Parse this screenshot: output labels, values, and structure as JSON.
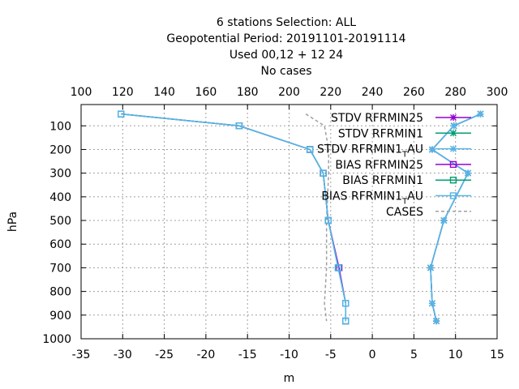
{
  "chart_data": {
    "type": "line",
    "title_lines": [
      "6 stations Selection: ALL",
      "Geopotential  Period: 20191101-20191114",
      "Used  00,12  + 12 24",
      "No cases"
    ],
    "xlabel": "m",
    "ylabel": "hPa",
    "xlim": [
      -35,
      15
    ],
    "ylim": [
      1000,
      10
    ],
    "y_reversed": true,
    "x_ticks": [
      "-35",
      "-30",
      "-25",
      "-20",
      "-15",
      "-10",
      "-5",
      "0",
      "5",
      "10",
      "15"
    ],
    "x_tick_values": [
      -35,
      -30,
      -25,
      -20,
      -15,
      -10,
      -5,
      0,
      5,
      10,
      15
    ],
    "y_ticks": [
      "100",
      "200",
      "300",
      "400",
      "500",
      "600",
      "700",
      "800",
      "900",
      "1000"
    ],
    "y_tick_values": [
      100,
      200,
      300,
      400,
      500,
      600,
      700,
      800,
      900,
      1000
    ],
    "x2_ticks": [
      "100",
      "120",
      "140",
      "160",
      "180",
      "200",
      "220",
      "240",
      "260",
      "280",
      "300"
    ],
    "x2_tick_values": [
      100,
      120,
      140,
      160,
      180,
      200,
      220,
      240,
      260,
      280,
      300
    ],
    "x2lim": [
      100,
      300
    ],
    "grid": true,
    "legend_position": "top-right",
    "levels": [
      50,
      100,
      200,
      300,
      500,
      700,
      850,
      925
    ],
    "series": [
      {
        "name": "STDV RFRMIN25",
        "color": "#9400d3",
        "marker": "x",
        "dash": "solid",
        "values": [
          13,
          9.8,
          7.2,
          11.5,
          8.6,
          7.0,
          7.2,
          7.7
        ]
      },
      {
        "name": "STDV RFRMIN1",
        "color": "#009e73",
        "marker": "x",
        "dash": "solid",
        "values": [
          13,
          9.8,
          7.2,
          11.5,
          8.6,
          7.0,
          7.2,
          7.7
        ]
      },
      {
        "name": "STDV RFRMIN1_T_AU",
        "label_main": "STDV RFRMIN1",
        "label_sub": "T",
        "label_tail": "AU",
        "color": "#56b4e9",
        "marker": "x",
        "dash": "solid",
        "values": [
          13,
          9.8,
          7.2,
          11.5,
          8.6,
          7.0,
          7.2,
          7.7
        ]
      },
      {
        "name": "BIAS RFRMIN25",
        "color": "#9400d3",
        "marker": "square",
        "dash": "solid",
        "values": [
          -30.2,
          -16,
          -7.5,
          -5.9,
          -5.3,
          -4,
          -3.2,
          -3.2
        ]
      },
      {
        "name": "BIAS RFRMIN1",
        "color": "#009e73",
        "marker": "square",
        "dash": "solid",
        "values": [
          -30.2,
          -16,
          -7.5,
          -5.9,
          -5.3,
          -4.1,
          -3.2,
          -3.2
        ]
      },
      {
        "name": "BIAS RFRMIN1_T_AU",
        "label_main": "BIAS RFRMIN1",
        "label_sub": "T",
        "label_tail": "AU",
        "color": "#56b4e9",
        "marker": "square",
        "dash": "solid",
        "values": [
          -30.2,
          -16,
          -7.5,
          -5.9,
          -5.3,
          -4.1,
          -3.2,
          -3.2
        ]
      }
    ],
    "cases_series": {
      "name": "CASES",
      "color": "#a0a0a0",
      "dash": "dashed",
      "axis": "x2",
      "x2_values": [
        208,
        217,
        219,
        219,
        218,
        218,
        217,
        218
      ],
      "levels": [
        50,
        100,
        200,
        300,
        500,
        700,
        850,
        925
      ]
    }
  }
}
